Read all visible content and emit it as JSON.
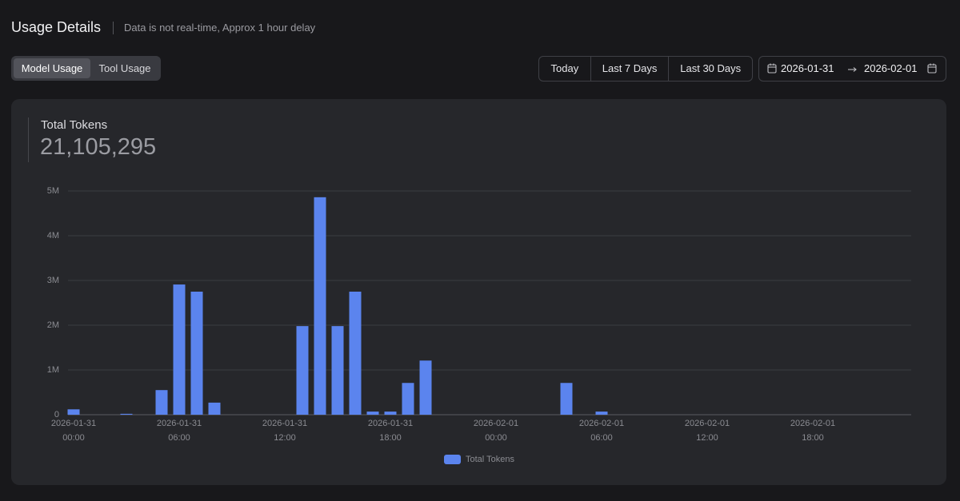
{
  "header": {
    "title": "Usage Details",
    "note": "Data is not real-time, Approx 1 hour delay"
  },
  "tabs": [
    "Model Usage",
    "Tool Usage"
  ],
  "ranges": [
    "Today",
    "Last 7 Days",
    "Last 30 Days"
  ],
  "date_range": {
    "start": "2026-01-31",
    "end": "2026-02-01"
  },
  "summary": {
    "label": "Total Tokens",
    "value": "21,105,295"
  },
  "chart_data": {
    "type": "bar",
    "categories": [
      "2026-01-31\n00:00",
      null,
      null,
      null,
      null,
      null,
      "2026-01-31\n06:00",
      null,
      null,
      null,
      null,
      null,
      "2026-01-31\n12:00",
      null,
      null,
      null,
      null,
      null,
      "2026-01-31\n18:00",
      null,
      null,
      null,
      null,
      null,
      "2026-02-01\n00:00",
      null,
      null,
      null,
      null,
      null,
      "2026-02-01\n06:00",
      null,
      null,
      null,
      null,
      null,
      "2026-02-01\n12:00",
      null,
      null,
      null,
      null,
      null,
      "2026-02-01\n18:00",
      null,
      null,
      null,
      null,
      null
    ],
    "series": [
      {
        "name": "Total Tokens",
        "color": "#5b84ee",
        "values": [
          120000,
          0,
          0,
          20000,
          0,
          550000,
          2910000,
          2750000,
          270000,
          0,
          0,
          0,
          0,
          1980000,
          4860000,
          1980000,
          2750000,
          70000,
          70000,
          710000,
          1210000,
          0,
          0,
          0,
          0,
          0,
          0,
          0,
          710000,
          0,
          70000,
          0,
          0,
          0,
          0,
          0,
          0,
          0,
          0,
          0,
          0,
          0,
          0,
          0,
          0,
          0,
          0,
          0
        ]
      }
    ],
    "ylim": [
      0,
      5000000
    ],
    "yticks": [
      0,
      {
        "value": 1000000,
        "label": "1M"
      },
      {
        "value": 2000000,
        "label": "2M"
      },
      {
        "value": 3000000,
        "label": "3M"
      },
      {
        "value": 4000000,
        "label": "4M"
      },
      {
        "value": 5000000,
        "label": "5M"
      }
    ],
    "grid": true,
    "legend": "bottom"
  }
}
